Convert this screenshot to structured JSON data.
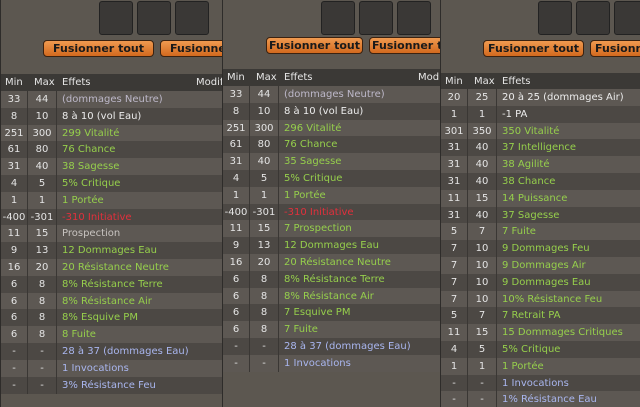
{
  "panels": [
    {
      "buttons": [
        "Fusionner tout",
        "Fusionner tout"
      ],
      "headers": [
        "Min",
        "Max",
        "Effets",
        "Modif."
      ],
      "rows": [
        {
          "min": 33,
          "max": 44,
          "effect": "(dommages Neutre)",
          "color": "#bdb8c9"
        },
        {
          "min": 8,
          "max": 10,
          "effect": "8 à 10 (vol Eau)",
          "color": "#ececec"
        },
        {
          "min": 251,
          "max": 300,
          "effect": "299 Vitalité",
          "color": "#96cf4c"
        },
        {
          "min": 61,
          "max": 80,
          "effect": "76 Chance",
          "color": "#96cf4c"
        },
        {
          "min": 31,
          "max": 40,
          "effect": "38 Sagesse",
          "color": "#96cf4c"
        },
        {
          "min": 4,
          "max": 5,
          "effect": "5% Critique",
          "color": "#96cf4c"
        },
        {
          "min": 1,
          "max": 1,
          "effect": "1 Portée",
          "color": "#96cf4c"
        },
        {
          "min": -400,
          "max": -301,
          "effect": "-310 Initiative",
          "color": "#e2303c"
        },
        {
          "min": 11,
          "max": 15,
          "effect": "Prospection",
          "color": "#c8c4c0"
        },
        {
          "min": 9,
          "max": 13,
          "effect": "12 Dommages Eau",
          "color": "#96cf4c"
        },
        {
          "min": 16,
          "max": 20,
          "effect": "20 Résistance Neutre",
          "color": "#96cf4c"
        },
        {
          "min": 6,
          "max": 8,
          "effect": "8% Résistance Terre",
          "color": "#96cf4c"
        },
        {
          "min": 6,
          "max": 8,
          "effect": "8% Résistance Air",
          "color": "#96cf4c"
        },
        {
          "min": 6,
          "max": 8,
          "effect": "8% Esquive PM",
          "color": "#96cf4c"
        },
        {
          "min": 6,
          "max": 8,
          "effect": "8 Fuite",
          "color": "#96cf4c"
        },
        {
          "min": "-",
          "max": "-",
          "effect": "28 à 37 (dommages Eau)",
          "color": "#a9b6ef"
        },
        {
          "min": "-",
          "max": "-",
          "effect": "1 Invocations",
          "color": "#a9b6ef"
        },
        {
          "min": "-",
          "max": "-",
          "effect": "3% Résistance Feu",
          "color": "#a9b6ef"
        }
      ]
    },
    {
      "buttons": [
        "Fusionner tout",
        "Fusionner tout"
      ],
      "headers": [
        "Min",
        "Max",
        "Effets",
        "Modif."
      ],
      "rows": [
        {
          "min": 33,
          "max": 44,
          "effect": "(dommages Neutre)",
          "color": "#bdb8c9"
        },
        {
          "min": 8,
          "max": 10,
          "effect": "8 à 10 (vol Eau)",
          "color": "#ececec"
        },
        {
          "min": 251,
          "max": 300,
          "effect": "296 Vitalité",
          "color": "#96cf4c"
        },
        {
          "min": 61,
          "max": 80,
          "effect": "76 Chance",
          "color": "#96cf4c"
        },
        {
          "min": 31,
          "max": 40,
          "effect": "35 Sagesse",
          "color": "#96cf4c"
        },
        {
          "min": 4,
          "max": 5,
          "effect": "5% Critique",
          "color": "#96cf4c"
        },
        {
          "min": 1,
          "max": 1,
          "effect": "1 Portée",
          "color": "#96cf4c"
        },
        {
          "min": -400,
          "max": -301,
          "effect": "-310 Initiative",
          "color": "#e2303c"
        },
        {
          "min": 11,
          "max": 15,
          "effect": "7 Prospection",
          "color": "#96cf4c"
        },
        {
          "min": 9,
          "max": 13,
          "effect": "12 Dommages Eau",
          "color": "#96cf4c"
        },
        {
          "min": 16,
          "max": 20,
          "effect": "20 Résistance Neutre",
          "color": "#96cf4c"
        },
        {
          "min": 6,
          "max": 8,
          "effect": "8% Résistance Terre",
          "color": "#96cf4c"
        },
        {
          "min": 6,
          "max": 8,
          "effect": "8% Résistance Air",
          "color": "#96cf4c"
        },
        {
          "min": 6,
          "max": 8,
          "effect": "7 Esquive PM",
          "color": "#96cf4c"
        },
        {
          "min": 6,
          "max": 8,
          "effect": "7 Fuite",
          "color": "#96cf4c"
        },
        {
          "min": "-",
          "max": "-",
          "effect": "28 à 37 (dommages Eau)",
          "color": "#a9b6ef"
        },
        {
          "min": "-",
          "max": "-",
          "effect": "1 Invocations",
          "color": "#a9b6ef"
        }
      ]
    },
    {
      "buttons": [
        "Fusionner tout",
        "Fusionner tout"
      ],
      "headers": [
        "Min",
        "Max",
        "Effets"
      ],
      "rows": [
        {
          "min": 20,
          "max": 25,
          "effect": "20 à 25 (dommages Air)",
          "color": "#ececec"
        },
        {
          "min": 1,
          "max": 1,
          "effect": "-1 PA",
          "color": "#ececec"
        },
        {
          "min": 301,
          "max": 350,
          "effect": "350 Vitalité",
          "color": "#96cf4c"
        },
        {
          "min": 31,
          "max": 40,
          "effect": "37 Intelligence",
          "color": "#96cf4c"
        },
        {
          "min": 31,
          "max": 40,
          "effect": "38 Agilité",
          "color": "#96cf4c"
        },
        {
          "min": 31,
          "max": 40,
          "effect": "38 Chance",
          "color": "#96cf4c"
        },
        {
          "min": 11,
          "max": 15,
          "effect": "14 Puissance",
          "color": "#96cf4c"
        },
        {
          "min": 31,
          "max": 40,
          "effect": "37 Sagesse",
          "color": "#96cf4c"
        },
        {
          "min": 5,
          "max": 7,
          "effect": "7 Fuite",
          "color": "#96cf4c"
        },
        {
          "min": 7,
          "max": 10,
          "effect": "9 Dommages Feu",
          "color": "#96cf4c"
        },
        {
          "min": 7,
          "max": 10,
          "effect": "9 Dommages Air",
          "color": "#96cf4c"
        },
        {
          "min": 7,
          "max": 10,
          "effect": "9 Dommages Eau",
          "color": "#96cf4c"
        },
        {
          "min": 7,
          "max": 10,
          "effect": "10% Résistance Feu",
          "color": "#96cf4c"
        },
        {
          "min": 5,
          "max": 7,
          "effect": "7 Retrait PA",
          "color": "#96cf4c"
        },
        {
          "min": 11,
          "max": 15,
          "effect": "15 Dommages Critiques",
          "color": "#96cf4c"
        },
        {
          "min": 4,
          "max": 5,
          "effect": "5% Critique",
          "color": "#96cf4c"
        },
        {
          "min": 1,
          "max": 1,
          "effect": "1 Portée",
          "color": "#96cf4c"
        },
        {
          "min": "-",
          "max": "-",
          "effect": "1 Invocations",
          "color": "#a9b6ef"
        },
        {
          "min": "-",
          "max": "-",
          "effect": "1% Résistance Eau",
          "color": "#a9b6ef"
        }
      ]
    }
  ]
}
